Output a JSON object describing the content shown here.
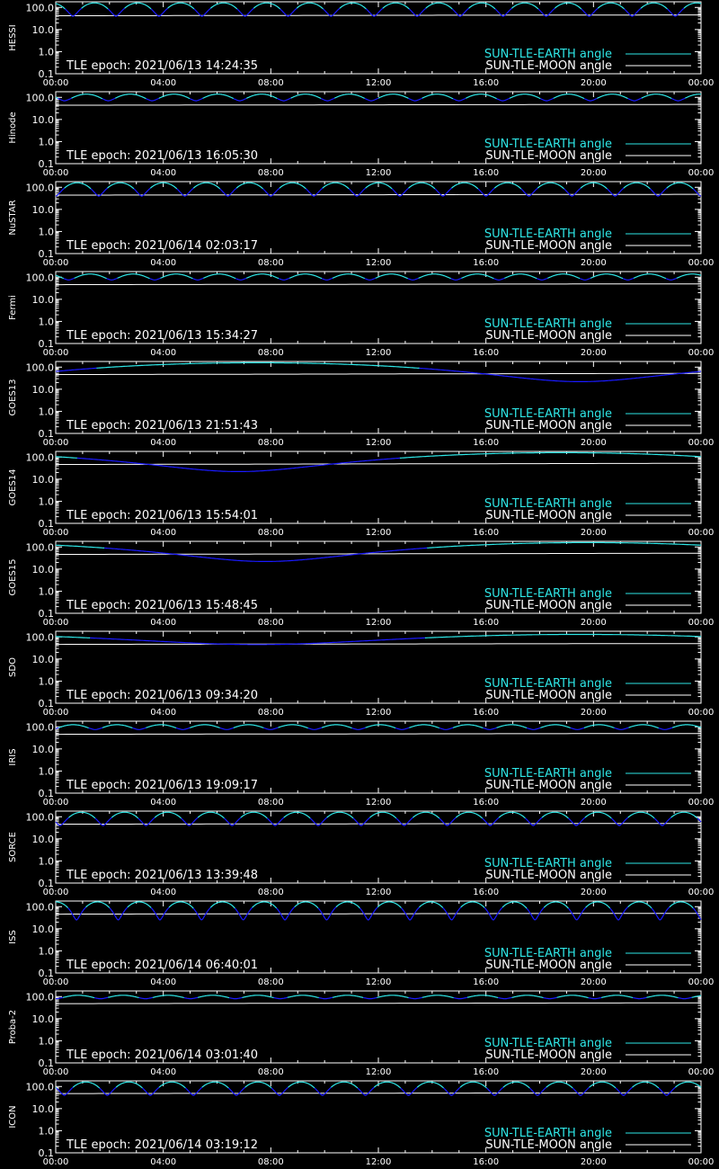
{
  "chart_data": {
    "type": "line",
    "y_scale": "log",
    "y_range": [
      0.1,
      180.0
    ],
    "x_range_hours": [
      0,
      24
    ],
    "y_tick_labels": [
      "100.0",
      "10.0",
      "1.0",
      "0.1"
    ],
    "x_tick_labels": [
      "00:00",
      "04:00",
      "08:00",
      "12:00",
      "16:00",
      "20:00",
      "00:00"
    ],
    "legend": [
      "SUN-TLE-EARTH angle",
      "SUN-TLE-MOON angle"
    ],
    "legend_placement": "bottom-right",
    "colors": {
      "background": "#000000",
      "axes": "#ffffff",
      "earth_light": "#2ee6e6",
      "earth_dark": "#1a1aff",
      "moon": "#ffffff"
    },
    "panels": [
      {
        "name": "HESSI",
        "epoch": "TLE epoch: 2021/06/13 14:24:35",
        "kind": "leo",
        "period_h": 1.6,
        "earth_min": 40,
        "earth_max": 160,
        "phase": 0.1,
        "moon_start": 42,
        "moon_end": 46
      },
      {
        "name": "Hinode",
        "epoch": "TLE epoch: 2021/06/13 16:05:30",
        "kind": "leo",
        "period_h": 1.63,
        "earth_min": 70,
        "earth_max": 140,
        "phase": 0.3,
        "moon_start": 44,
        "moon_end": 48
      },
      {
        "name": "NuSTAR",
        "epoch": "TLE epoch: 2021/06/14 02:03:17",
        "kind": "leo",
        "period_h": 1.6,
        "earth_min": 40,
        "earth_max": 160,
        "phase": 0.5,
        "moon_start": 44,
        "moon_end": 48
      },
      {
        "name": "Fermi",
        "epoch": "TLE epoch: 2021/06/13 15:34:27",
        "kind": "leo",
        "period_h": 1.6,
        "earth_min": 75,
        "earth_max": 140,
        "phase": 0.2,
        "moon_start": 46,
        "moon_end": 50
      },
      {
        "name": "GOES13",
        "epoch": "TLE epoch: 2021/06/13 21:51:43",
        "kind": "geo",
        "min_hour": 19.5,
        "earth_min": 22,
        "earth_max": 158,
        "moon_start": 46,
        "moon_end": 52
      },
      {
        "name": "GOES14",
        "epoch": "TLE epoch: 2021/06/13 15:54:01",
        "kind": "geo",
        "min_hour": 6.8,
        "earth_min": 22,
        "earth_max": 158,
        "moon_start": 46,
        "moon_end": 52
      },
      {
        "name": "GOES15",
        "epoch": "TLE epoch: 2021/06/13 15:48:45",
        "kind": "geo",
        "min_hour": 7.8,
        "earth_min": 22,
        "earth_max": 158,
        "moon_start": 46,
        "moon_end": 52
      },
      {
        "name": "SDO",
        "epoch": "TLE epoch: 2021/06/13 09:34:20",
        "kind": "geo",
        "min_hour": 7.5,
        "earth_min": 45,
        "earth_max": 130,
        "moon_start": 46,
        "moon_end": 50
      },
      {
        "name": "IRIS",
        "epoch": "TLE epoch: 2021/06/13 19:09:17",
        "kind": "leo",
        "period_h": 1.63,
        "earth_min": 75,
        "earth_max": 125,
        "phase": 0.6,
        "moon_start": 46,
        "moon_end": 50
      },
      {
        "name": "SORCE",
        "epoch": "TLE epoch: 2021/06/13 13:39:48",
        "kind": "leo",
        "period_h": 1.6,
        "earth_min": 40,
        "earth_max": 160,
        "phase": 0.4,
        "moon_start": 46,
        "moon_end": 50
      },
      {
        "name": "ISS",
        "epoch": "TLE epoch: 2021/06/14 06:40:01",
        "kind": "leo",
        "period_h": 1.55,
        "earth_min": 25,
        "earth_max": 165,
        "phase": 0.0,
        "moon_start": 46,
        "moon_end": 50
      },
      {
        "name": "Proba-2",
        "epoch": "TLE epoch: 2021/06/14 03:01:40",
        "kind": "leo",
        "period_h": 1.67,
        "earth_min": 80,
        "earth_max": 115,
        "phase": 0.5,
        "moon_start": 48,
        "moon_end": 52
      },
      {
        "name": "ICON",
        "epoch": "TLE epoch: 2021/06/14 03:19:12",
        "kind": "leo",
        "period_h": 1.6,
        "earth_min": 40,
        "earth_max": 160,
        "phase": 0.3,
        "moon_start": 48,
        "moon_end": 52
      }
    ]
  }
}
